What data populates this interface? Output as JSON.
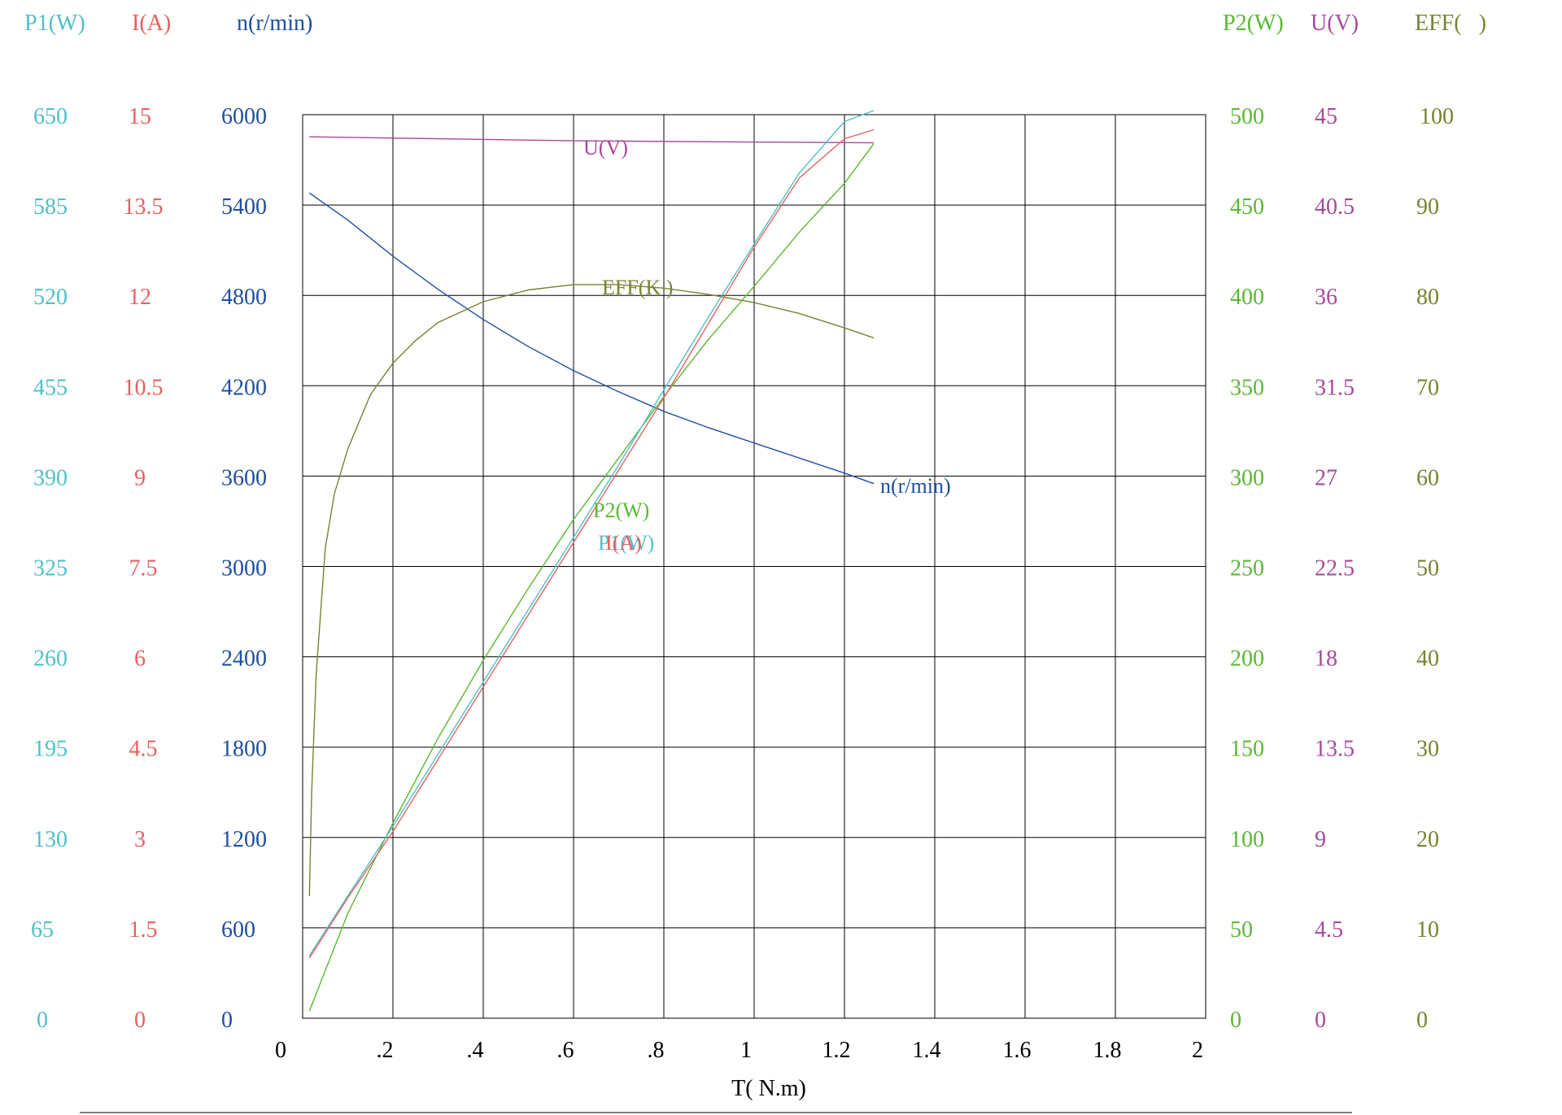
{
  "chart_data": {
    "type": "line",
    "xlabel": "T( N.m)",
    "x_ticks": [
      "0",
      ".2",
      ".4",
      ".6",
      ".8",
      "1",
      "1.2",
      "1.4",
      "1.6",
      "1.8",
      "2"
    ],
    "xlim": [
      0,
      2
    ],
    "axes": {
      "P1": {
        "title": "P1(W)",
        "color": "#4fc0c8",
        "min": 0,
        "max": 650,
        "ticks": [
          "650",
          "585",
          "520",
          "455",
          "390",
          "325",
          "260",
          "195",
          "130",
          "65",
          "0"
        ]
      },
      "I": {
        "title": "I(A)",
        "color": "#e86060",
        "min": 0,
        "max": 15,
        "ticks": [
          "15",
          "13.5",
          "12",
          "10.5",
          "9",
          "7.5",
          "6",
          "4.5",
          "3",
          "1.5",
          "0"
        ]
      },
      "n": {
        "title": "n(r/min)",
        "color": "#1e4fa0",
        "min": 0,
        "max": 6000,
        "ticks": [
          "6000",
          "5400",
          "4800",
          "4200",
          "3600",
          "3000",
          "2400",
          "1800",
          "1200",
          "600",
          "0"
        ]
      },
      "P2": {
        "title": "P2(W)",
        "color": "#5ab832",
        "min": 0,
        "max": 500,
        "ticks": [
          "500",
          "450",
          "400",
          "350",
          "300",
          "250",
          "200",
          "150",
          "100",
          "50",
          "0"
        ]
      },
      "U": {
        "title": "U(V)",
        "color": "#a8489a",
        "min": 0,
        "max": 45,
        "ticks": [
          "45",
          "40.5",
          "36",
          "31.5",
          "27",
          "22.5",
          "18",
          "13.5",
          "9",
          "4.5",
          "0"
        ]
      },
      "EFF": {
        "title": "EFF(   )",
        "color": "#7a8232",
        "min": 0,
        "max": 100,
        "ticks": [
          "100",
          "90",
          "80",
          "70",
          "60",
          "50",
          "40",
          "30",
          "20",
          "10",
          "0"
        ]
      }
    },
    "series": [
      {
        "name": "U(V)",
        "axis": "U",
        "color": "#a8489a",
        "x": [
          0.015,
          0.3,
          0.6,
          0.9,
          1.265
        ],
        "y": [
          43.9,
          43.8,
          43.7,
          43.65,
          43.6
        ]
      },
      {
        "name": "n(r/min)",
        "axis": "n",
        "color": "#1e4fa0",
        "x": [
          0.015,
          0.1,
          0.2,
          0.3,
          0.4,
          0.5,
          0.6,
          0.7,
          0.8,
          0.9,
          1.0,
          1.1,
          1.2,
          1.265
        ],
        "y": [
          5480,
          5300,
          5060,
          4840,
          4640,
          4460,
          4300,
          4160,
          4030,
          3920,
          3820,
          3720,
          3620,
          3550
        ]
      },
      {
        "name": "EFF(K )",
        "axis": "EFF",
        "color": "#7a8232",
        "x": [
          0.015,
          0.02,
          0.03,
          0.05,
          0.07,
          0.1,
          0.15,
          0.2,
          0.25,
          0.3,
          0.4,
          0.5,
          0.6,
          0.7,
          0.8,
          0.9,
          1.0,
          1.1,
          1.2,
          1.265
        ],
        "y": [
          13.5,
          25,
          38,
          52,
          58,
          63,
          69,
          72.5,
          75,
          77,
          79.3,
          80.6,
          81.2,
          81.2,
          80.8,
          80.1,
          79.2,
          78,
          76.4,
          75.3
        ]
      },
      {
        "name": "P2(W)",
        "axis": "P2",
        "color": "#5ab832",
        "x": [
          0.015,
          0.1,
          0.2,
          0.3,
          0.4,
          0.5,
          0.6,
          0.7,
          0.8,
          0.9,
          1.0,
          1.1,
          1.2,
          1.265
        ],
        "y": [
          4,
          58,
          108,
          155,
          198,
          238,
          276,
          310,
          344,
          376,
          405,
          435,
          462,
          484
        ]
      },
      {
        "name": "P1(W)",
        "axis": "P1",
        "color": "#4fc0c8",
        "x": [
          0.015,
          0.1,
          0.2,
          0.3,
          0.4,
          0.5,
          0.6,
          0.7,
          0.8,
          0.9,
          1.0,
          1.1,
          1.2,
          1.265
        ],
        "y": [
          45,
          88,
          138,
          190,
          242,
          294,
          346,
          398,
          452,
          505,
          557,
          608,
          645,
          653
        ]
      },
      {
        "name": "I(A)",
        "axis": "I",
        "color": "#e86060",
        "x": [
          0.015,
          0.1,
          0.2,
          0.3,
          0.4,
          0.5,
          0.6,
          0.7,
          0.8,
          0.9,
          1.0,
          1.1,
          1.2,
          1.265
        ],
        "y": [
          1.0,
          2.0,
          3.1,
          4.3,
          5.5,
          6.7,
          7.9,
          9.1,
          10.3,
          11.55,
          12.8,
          13.95,
          14.6,
          14.75
        ]
      }
    ],
    "curve_labels": [
      "U(V)",
      "EFF(K )",
      "n(r/min)",
      "P2(W)",
      "P1(W)",
      "I(A)"
    ],
    "grid": true
  }
}
